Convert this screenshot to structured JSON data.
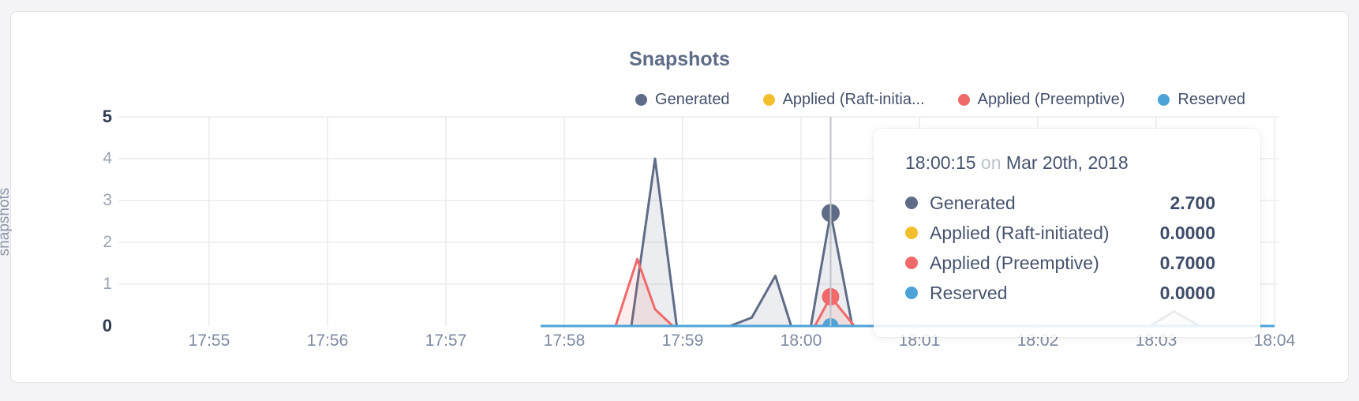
{
  "chart": {
    "title": "Snapshots",
    "y_axis_title": "snapshots",
    "legend": [
      {
        "label": "Generated",
        "color": "#5f6c87"
      },
      {
        "label": "Applied (Raft-initia...",
        "color": "#f2be2c"
      },
      {
        "label": "Applied (Preemptive)",
        "color": "#f16969"
      },
      {
        "label": "Reserved",
        "color": "#4da3d8"
      }
    ]
  },
  "tooltip": {
    "time": "18:00:15",
    "separator": "on",
    "date": "Mar 20th, 2018",
    "rows": [
      {
        "label": "Generated",
        "value": "2.700",
        "color": "#5f6c87"
      },
      {
        "label": "Applied (Raft-initiated)",
        "value": "0.0000",
        "color": "#f2be2c"
      },
      {
        "label": "Applied (Preemptive)",
        "value": "0.7000",
        "color": "#f16969"
      },
      {
        "label": "Reserved",
        "value": "0.0000",
        "color": "#4da3d8"
      }
    ]
  },
  "chart_data": {
    "type": "area",
    "title": "Snapshots",
    "xlabel": "",
    "ylabel": "snapshots",
    "ylim": [
      0,
      5
    ],
    "grid": true,
    "legend_position": "top-right",
    "x_ticks": [
      "17:55",
      "17:56",
      "17:57",
      "17:58",
      "17:59",
      "18:00",
      "18:01",
      "18:02",
      "18:03",
      "18:04"
    ],
    "y_ticks": [
      0,
      1,
      2,
      3,
      4,
      5
    ],
    "series": [
      {
        "name": "Generated",
        "color": "#5f6c87",
        "points": [
          [
            "17:57:48",
            0
          ],
          [
            "17:58:34",
            0
          ],
          [
            "17:58:46",
            4
          ],
          [
            "17:58:57",
            0
          ],
          [
            "17:59:24",
            0
          ],
          [
            "17:59:35",
            0.2
          ],
          [
            "17:59:47",
            1.2
          ],
          [
            "17:59:55",
            0
          ],
          [
            "18:00:05",
            0
          ],
          [
            "18:00:15",
            2.7
          ],
          [
            "18:00:26",
            0
          ],
          [
            "18:02:57",
            0
          ],
          [
            "18:03:09",
            0.35
          ],
          [
            "18:03:22",
            0
          ],
          [
            "18:04:00",
            0
          ]
        ]
      },
      {
        "name": "Applied (Raft-initiated)",
        "color": "#f2be2c",
        "points": [
          [
            "17:57:48",
            0
          ],
          [
            "18:04:00",
            0
          ]
        ]
      },
      {
        "name": "Applied (Preemptive)",
        "color": "#f16969",
        "points": [
          [
            "17:57:48",
            0
          ],
          [
            "17:58:26",
            0
          ],
          [
            "17:58:37",
            1.6
          ],
          [
            "17:58:46",
            0.4
          ],
          [
            "17:58:55",
            0
          ],
          [
            "18:00:07",
            0
          ],
          [
            "18:00:15",
            0.7
          ],
          [
            "18:00:27",
            0
          ],
          [
            "18:04:00",
            0
          ]
        ]
      },
      {
        "name": "Reserved",
        "color": "#4da3d8",
        "points": [
          [
            "17:57:48",
            0
          ],
          [
            "18:04:00",
            0
          ]
        ]
      }
    ],
    "highlight": {
      "time": "18:00:15",
      "date": "Mar 20th, 2018",
      "values": [
        2.7,
        0.0,
        0.7,
        0.0
      ]
    }
  }
}
